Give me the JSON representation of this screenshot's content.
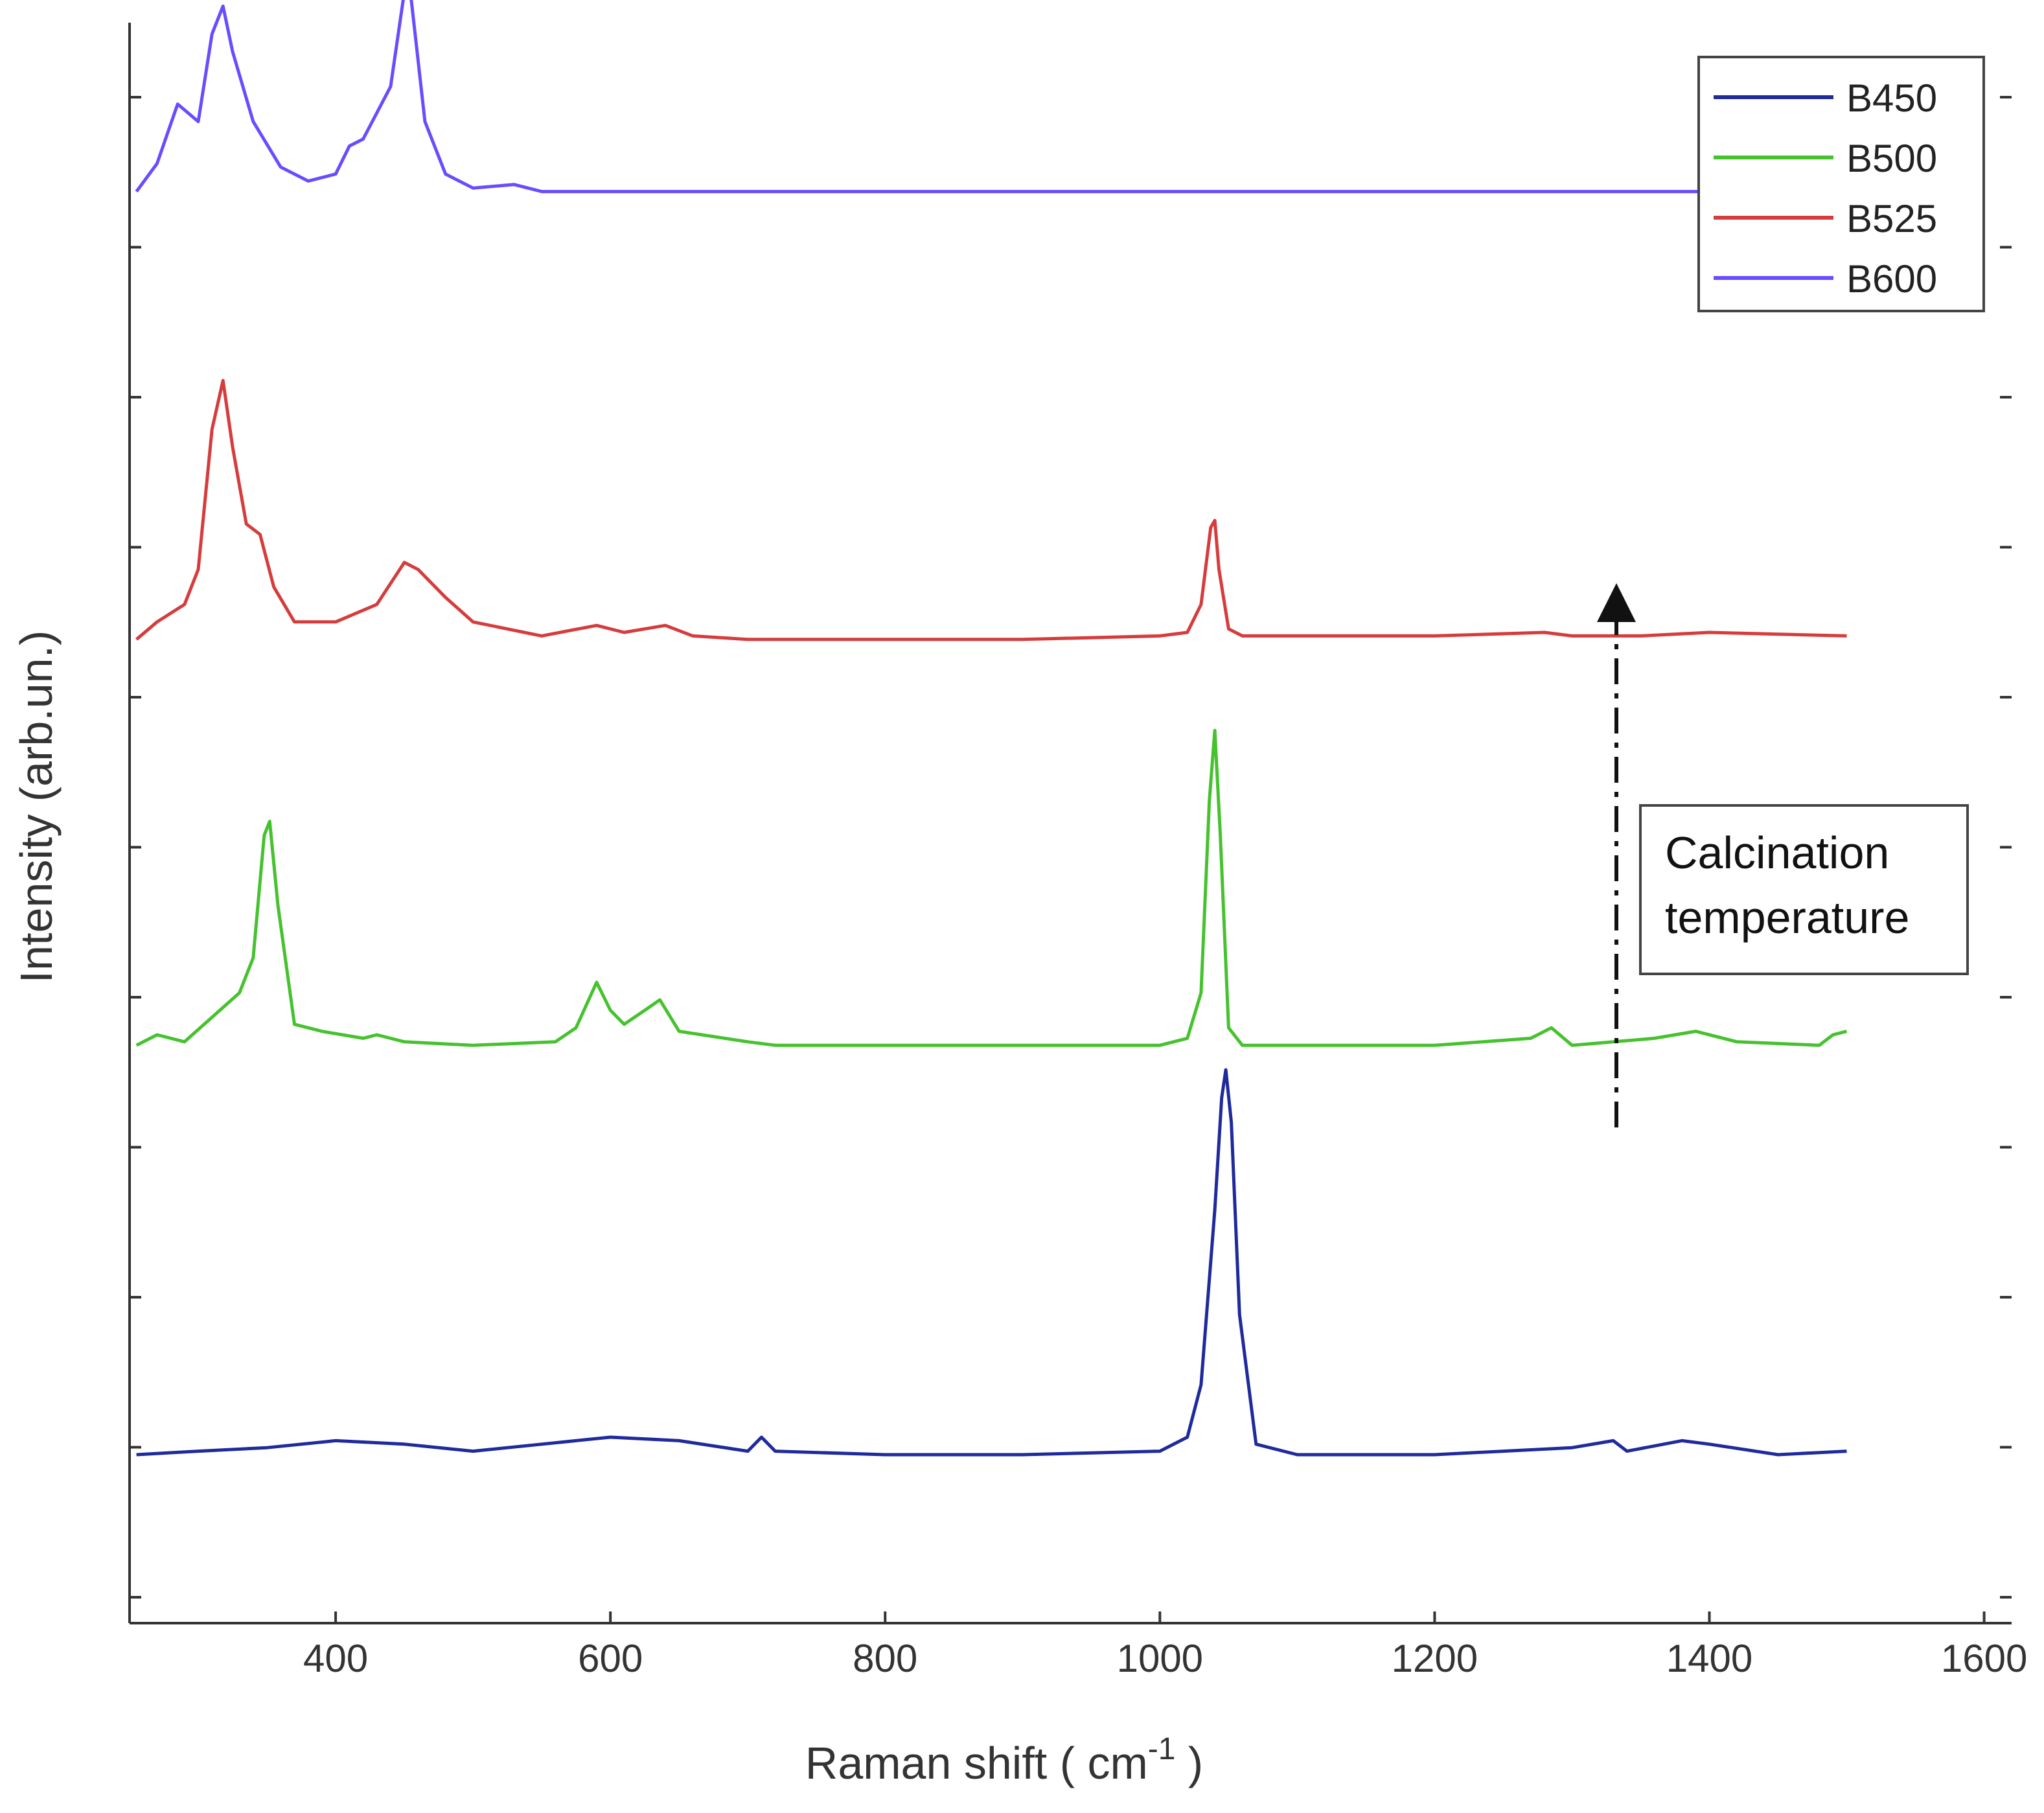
{
  "chart_data": {
    "type": "line",
    "xlabel": "Raman shift ( cm",
    "xlabel_sup": "-1",
    "xlabel_close": " )",
    "ylabel": "Intensity (arb.un.)",
    "xlim": [
      250,
      1620
    ],
    "xticks": [
      400,
      600,
      800,
      1000,
      1200,
      1400,
      1600
    ],
    "y_tick_labels_shown": false,
    "grid": false,
    "legend_position": "top-right",
    "series": [
      {
        "name": "B450",
        "color": "#1f2a9c",
        "baseline": 0.0,
        "x": [
          255,
          300,
          350,
          400,
          450,
          500,
          550,
          600,
          650,
          700,
          710,
          720,
          800,
          900,
          1000,
          1020,
          1030,
          1040,
          1045,
          1048,
          1052,
          1058,
          1070,
          1100,
          1200,
          1300,
          1330,
          1340,
          1380,
          1400,
          1450,
          1500
        ],
        "y": [
          0.0,
          0.01,
          0.02,
          0.04,
          0.03,
          0.01,
          0.03,
          0.05,
          0.04,
          0.01,
          0.05,
          0.01,
          0.0,
          0.0,
          0.01,
          0.05,
          0.2,
          0.7,
          1.02,
          1.1,
          0.95,
          0.4,
          0.03,
          0.0,
          0.0,
          0.02,
          0.04,
          0.01,
          0.04,
          0.03,
          0.0,
          0.01
        ]
      },
      {
        "name": "B500",
        "color": "#45c22e",
        "baseline": 1.17,
        "x": [
          255,
          270,
          290,
          310,
          330,
          340,
          348,
          352,
          358,
          370,
          390,
          420,
          430,
          450,
          500,
          560,
          575,
          590,
          600,
          610,
          625,
          636,
          650,
          700,
          720,
          800,
          900,
          1000,
          1020,
          1030,
          1036,
          1040,
          1044,
          1050,
          1060,
          1100,
          1200,
          1270,
          1285,
          1300,
          1360,
          1390,
          1420,
          1480,
          1490,
          1500
        ],
        "y": [
          0.0,
          0.03,
          0.01,
          0.08,
          0.15,
          0.25,
          0.6,
          0.64,
          0.4,
          0.06,
          0.04,
          0.02,
          0.03,
          0.01,
          0.0,
          0.01,
          0.05,
          0.18,
          0.1,
          0.06,
          0.1,
          0.13,
          0.04,
          0.01,
          0.0,
          0.0,
          0.0,
          0.0,
          0.02,
          0.15,
          0.7,
          0.9,
          0.6,
          0.05,
          0.0,
          0.0,
          0.0,
          0.02,
          0.05,
          0.0,
          0.02,
          0.04,
          0.01,
          0.0,
          0.03,
          0.04
        ]
      },
      {
        "name": "B525",
        "color": "#d63c3c",
        "baseline": 2.33,
        "x": [
          255,
          270,
          290,
          300,
          310,
          318,
          325,
          335,
          345,
          355,
          370,
          400,
          430,
          450,
          460,
          480,
          500,
          550,
          590,
          610,
          640,
          660,
          700,
          800,
          900,
          1000,
          1020,
          1030,
          1037,
          1040,
          1043,
          1050,
          1060,
          1100,
          1200,
          1280,
          1300,
          1350,
          1400,
          1500
        ],
        "y": [
          0.0,
          0.05,
          0.1,
          0.2,
          0.6,
          0.74,
          0.55,
          0.33,
          0.3,
          0.15,
          0.05,
          0.05,
          0.1,
          0.22,
          0.2,
          0.12,
          0.05,
          0.01,
          0.04,
          0.02,
          0.04,
          0.01,
          0.0,
          0.0,
          0.0,
          0.01,
          0.02,
          0.1,
          0.32,
          0.34,
          0.2,
          0.03,
          0.01,
          0.01,
          0.01,
          0.02,
          0.01,
          0.01,
          0.02,
          0.01
        ]
      },
      {
        "name": "B600",
        "color": "#6a4cff",
        "baseline": 3.61,
        "x": [
          255,
          270,
          285,
          300,
          310,
          318,
          325,
          340,
          360,
          380,
          400,
          410,
          420,
          440,
          450,
          455,
          465,
          480,
          500,
          530,
          550,
          600,
          700,
          800,
          900,
          1000,
          1100,
          1200,
          1300,
          1400,
          1500
        ],
        "y": [
          0.0,
          0.08,
          0.25,
          0.2,
          0.45,
          0.53,
          0.4,
          0.2,
          0.07,
          0.03,
          0.05,
          0.13,
          0.15,
          0.3,
          0.57,
          0.55,
          0.2,
          0.05,
          0.01,
          0.02,
          0.0,
          0.0,
          0.0,
          0.0,
          0.0,
          0.0,
          0.0,
          0.0,
          0.0,
          0.0,
          0.0
        ]
      }
    ],
    "annotation": {
      "line1": "Calcination",
      "line2": "temperature"
    }
  }
}
